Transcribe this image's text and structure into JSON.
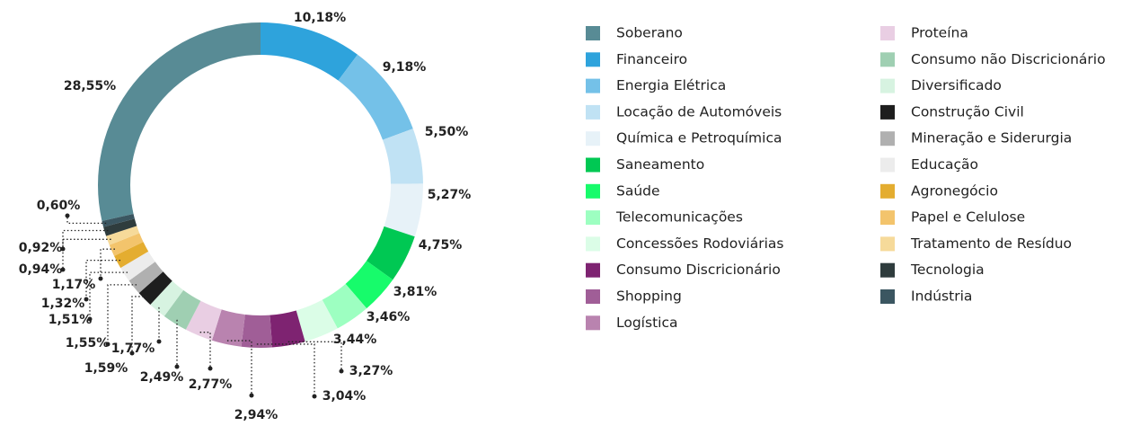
{
  "chart_data": {
    "type": "donut",
    "categories": [
      "Soberano",
      "Financeiro",
      "Energia Elétrica",
      "Locação de Automóveis",
      "Química e Petroquímica",
      "Saneamento",
      "Saúde",
      "Telecomunicações",
      "Concessões Rodoviárias",
      "Consumo Discricionário",
      "Shopping",
      "Logística",
      "Proteína",
      "Consumo não Discricionário",
      "Diversificado",
      "Construção Civil",
      "Mineração e Siderurgia",
      "Educação",
      "Agronegócio",
      "Papel e Celulose",
      "Tratamento de Resíduo",
      "Tecnologia",
      "Indústria"
    ],
    "values": [
      28.55,
      10.18,
      9.18,
      5.5,
      5.27,
      4.75,
      3.81,
      3.46,
      3.44,
      3.27,
      3.04,
      2.94,
      2.77,
      2.49,
      1.77,
      1.59,
      1.55,
      1.51,
      1.32,
      1.17,
      0.94,
      0.92,
      0.6
    ],
    "value_labels": [
      "28,55%",
      "10,18%",
      "9,18%",
      "5,50%",
      "5,27%",
      "4,75%",
      "3,81%",
      "3,46%",
      "3,44%",
      "3,27%",
      "3,04%",
      "2,94%",
      "2,77%",
      "2,49%",
      "1,77%",
      "1,59%",
      "1,55%",
      "1,51%",
      "1,32%",
      "1,17%",
      "0,94%",
      "0,92%",
      "0,60%"
    ],
    "colors": [
      "#588b95",
      "#2ea3dc",
      "#74c1e8",
      "#c0e2f4",
      "#e7f2f8",
      "#00c853",
      "#17fb6b",
      "#9dffc1",
      "#dbfde7",
      "#7e2371",
      "#a05e97",
      "#b983af",
      "#e9cee3",
      "#9fcfb2",
      "#d7f3e1",
      "#1e1e1e",
      "#b0b0b0",
      "#ececec",
      "#e4ad30",
      "#f3c46c",
      "#f6da9a",
      "#2f3c3d",
      "#3b5661"
    ],
    "legend": "right"
  }
}
